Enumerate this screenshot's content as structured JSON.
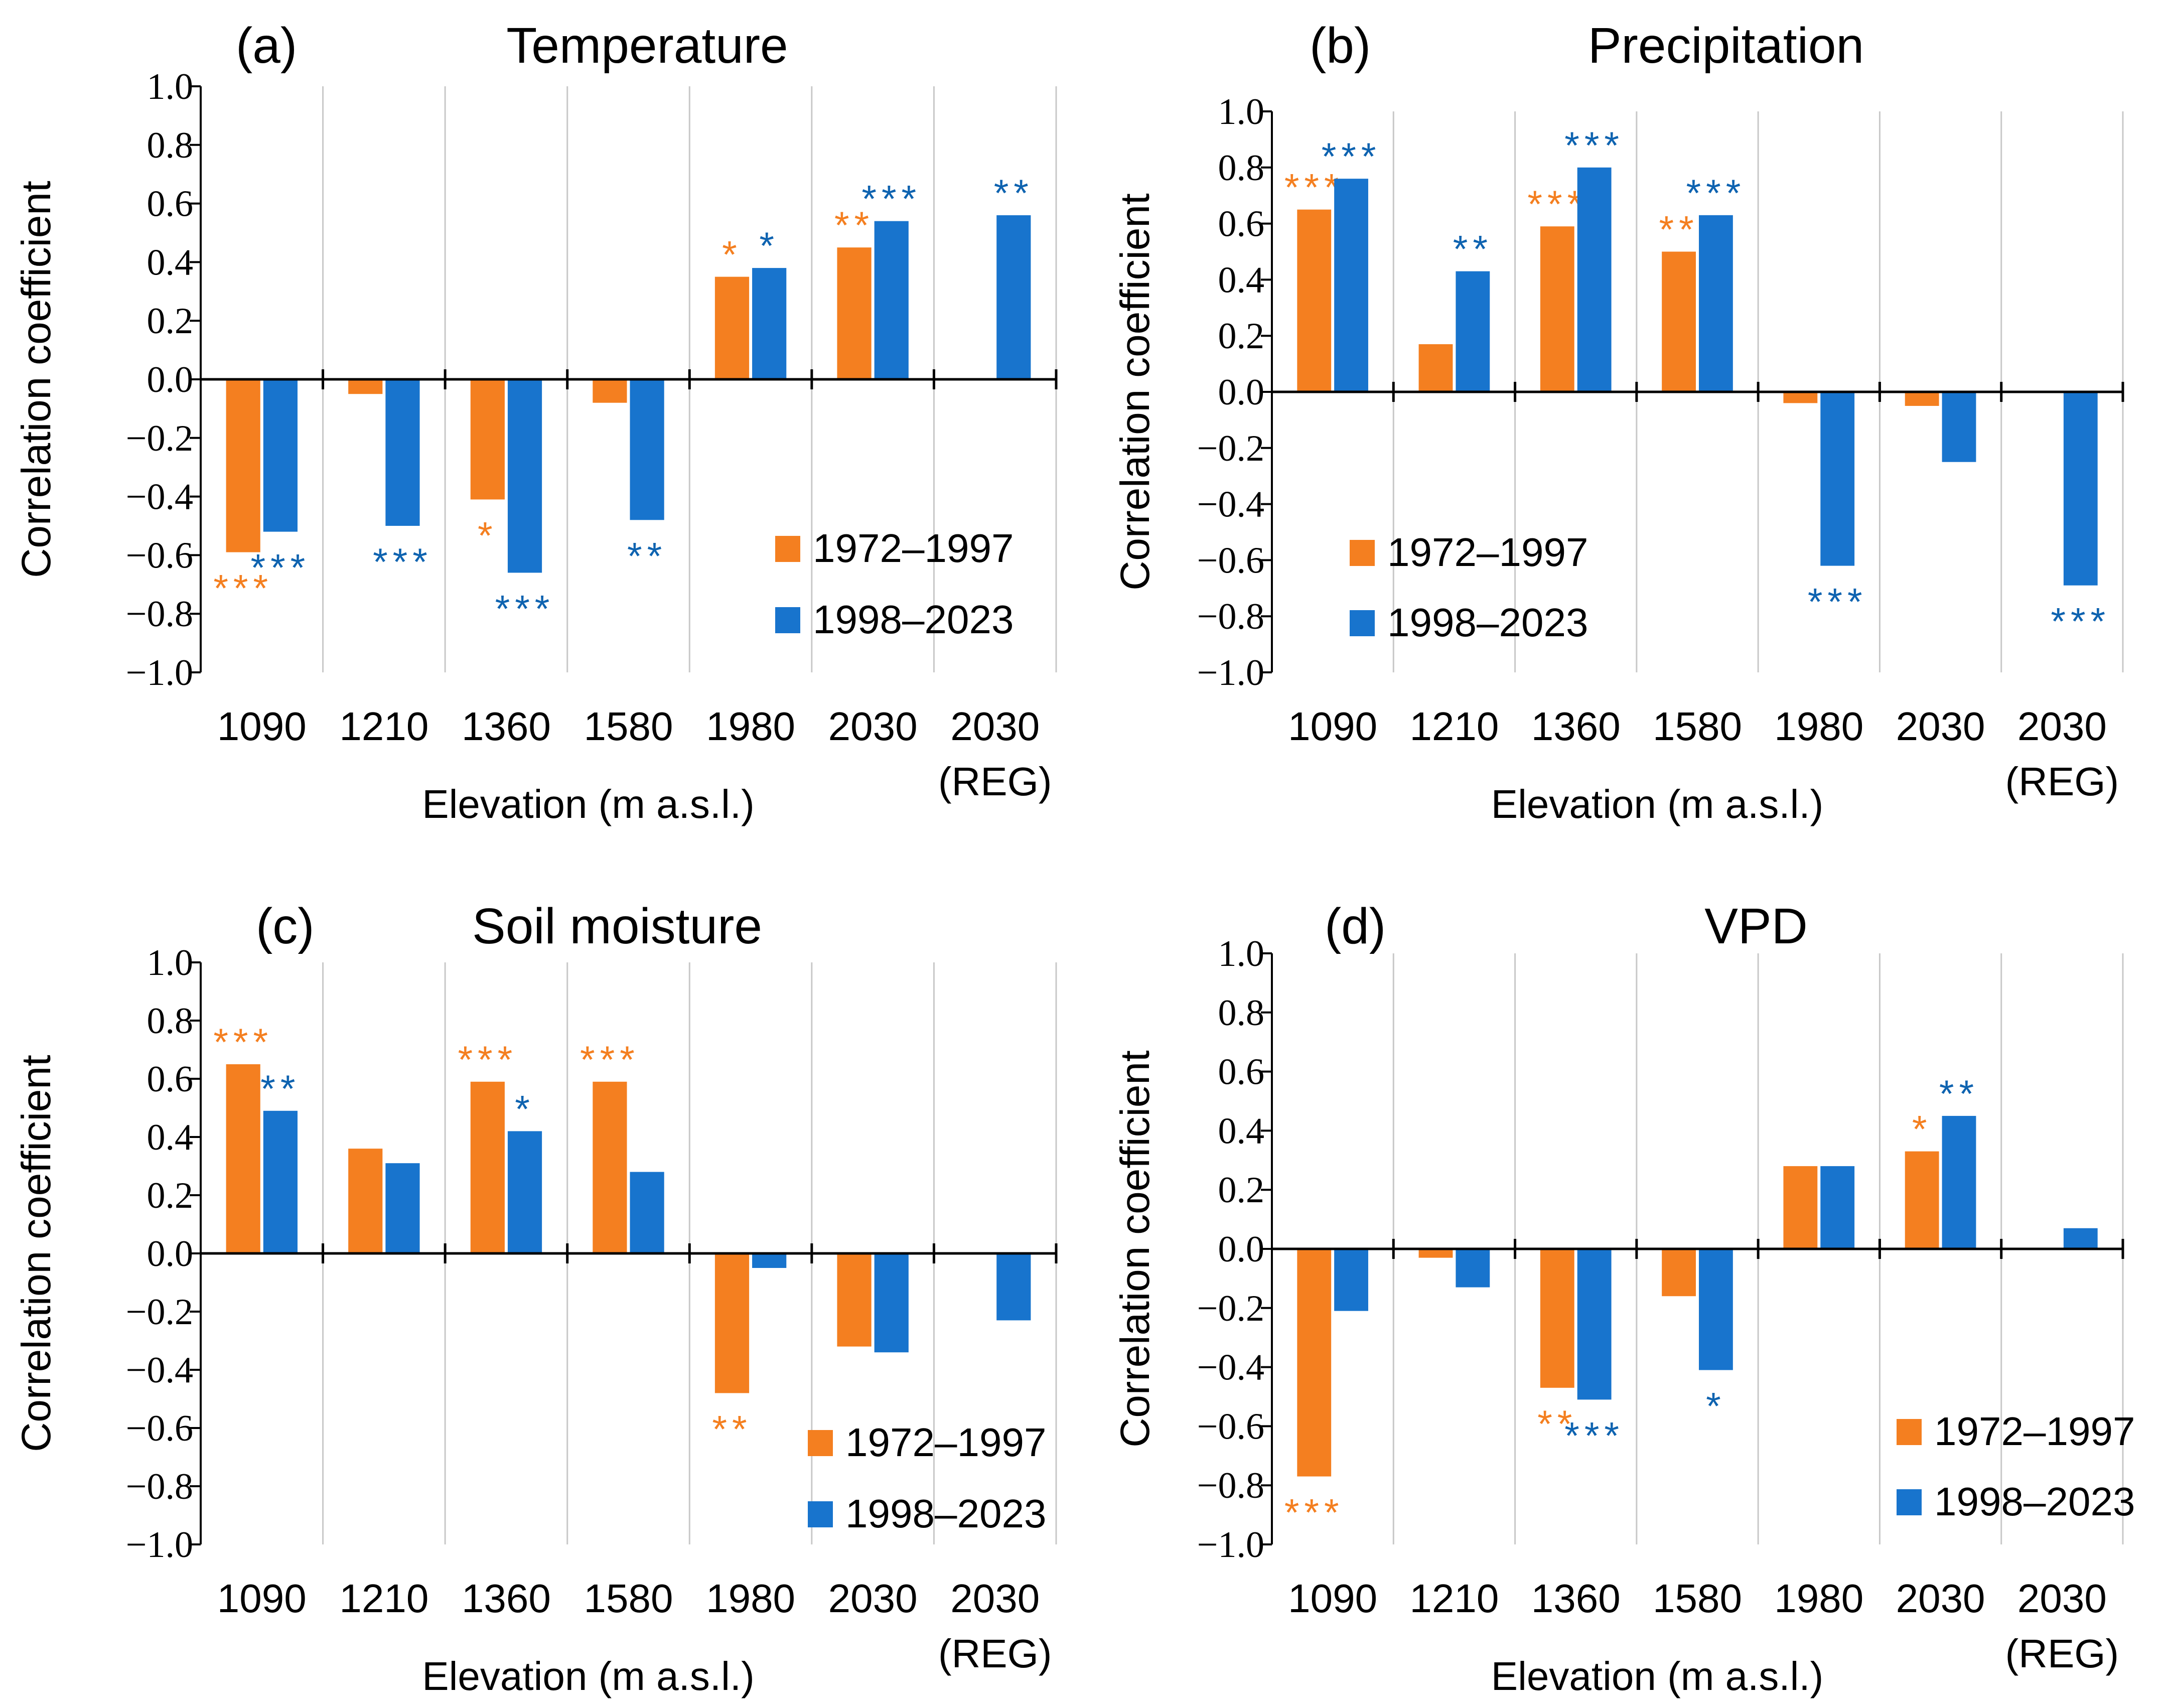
{
  "figure": {
    "legend": {
      "series1": "1972–1997",
      "series2": "1998–2023"
    },
    "colors": {
      "series1": "#F47F20",
      "series2": "#1874CD",
      "series1_star": "#F47F20",
      "series2_star": "#0E63B0"
    }
  },
  "chart_data": [
    {
      "type": "bar",
      "panel_label": "(a)",
      "title": "Temperature",
      "xlabel": "Elevation (m a.s.l.)",
      "ylabel": "Correlation coefficient",
      "ylim": [
        -1.0,
        1.0
      ],
      "yticks": [
        "1.0",
        "0.8",
        "0.6",
        "0.4",
        "0.2",
        "0.0",
        "−0.2",
        "−0.4",
        "−0.6",
        "−0.8",
        "−1.0"
      ],
      "categories": [
        [
          "1090"
        ],
        [
          "1210"
        ],
        [
          "1360"
        ],
        [
          "1580"
        ],
        [
          "1980"
        ],
        [
          "2030"
        ],
        [
          "2030",
          "(REG)"
        ]
      ],
      "legend_position": "bottom-right",
      "series": [
        {
          "name": "1972–1997",
          "values": [
            -0.59,
            -0.05,
            -0.41,
            -0.08,
            0.35,
            0.45,
            null
          ],
          "significance": [
            "***",
            "",
            "*",
            "",
            "*",
            "**",
            ""
          ]
        },
        {
          "name": "1998–2023",
          "values": [
            -0.52,
            -0.5,
            -0.66,
            -0.48,
            0.38,
            0.54,
            0.56
          ],
          "significance": [
            "***",
            "***",
            "***",
            "**",
            "*",
            "***",
            "**"
          ]
        }
      ]
    },
    {
      "type": "bar",
      "panel_label": "(b)",
      "title": "Precipitation",
      "xlabel": "Elevation (m a.s.l.)",
      "ylabel": "Correlation coefficient",
      "ylim": [
        -1.0,
        1.0
      ],
      "yticks": [
        "1.0",
        "0.8",
        "0.6",
        "0.4",
        "0.2",
        "0.0",
        "−0.2",
        "−0.4",
        "−0.6",
        "−0.8",
        "−1.0"
      ],
      "categories": [
        [
          "1090"
        ],
        [
          "1210"
        ],
        [
          "1360"
        ],
        [
          "1580"
        ],
        [
          "1980"
        ],
        [
          "2030"
        ],
        [
          "2030",
          "(REG)"
        ]
      ],
      "legend_position": "bottom-left",
      "series": [
        {
          "name": "1972–1997",
          "values": [
            0.65,
            0.17,
            0.59,
            0.5,
            -0.04,
            -0.05,
            null
          ],
          "significance": [
            "***",
            "",
            "***",
            "**",
            "",
            "",
            ""
          ]
        },
        {
          "name": "1998–2023",
          "values": [
            0.76,
            0.43,
            0.8,
            0.63,
            -0.62,
            -0.25,
            -0.69
          ],
          "significance": [
            "***",
            "**",
            "***",
            "***",
            "***",
            "",
            "***"
          ]
        }
      ]
    },
    {
      "type": "bar",
      "panel_label": "(c)",
      "title": "Soil moisture",
      "xlabel": "Elevation (m a.s.l.)",
      "ylabel": "Correlation coefficient",
      "ylim": [
        -1.0,
        1.0
      ],
      "yticks": [
        "1.0",
        "0.8",
        "0.6",
        "0.4",
        "0.2",
        "0.0",
        "−0.2",
        "−0.4",
        "−0.6",
        "−0.8",
        "−1.0"
      ],
      "categories": [
        [
          "1090"
        ],
        [
          "1210"
        ],
        [
          "1360"
        ],
        [
          "1580"
        ],
        [
          "1980"
        ],
        [
          "2030"
        ],
        [
          "2030",
          "(REG)"
        ]
      ],
      "legend_position": "bottom-right",
      "series": [
        {
          "name": "1972–1997",
          "values": [
            0.65,
            0.36,
            0.59,
            0.59,
            -0.48,
            -0.32,
            null
          ],
          "significance": [
            "***",
            "",
            "***",
            "***",
            "**",
            "",
            ""
          ]
        },
        {
          "name": "1998–2023",
          "values": [
            0.49,
            0.31,
            0.42,
            0.28,
            -0.05,
            -0.34,
            -0.23
          ],
          "significance": [
            "**",
            "",
            "*",
            "",
            "",
            "",
            ""
          ]
        }
      ]
    },
    {
      "type": "bar",
      "panel_label": "(d)",
      "title": "VPD",
      "xlabel": "Elevation (m a.s.l.)",
      "ylabel": "Correlation coefficient",
      "ylim": [
        -1.0,
        1.0
      ],
      "yticks": [
        "1.0",
        "0.8",
        "0.6",
        "0.4",
        "0.2",
        "0.0",
        "−0.2",
        "−0.4",
        "−0.6",
        "−0.8",
        "−1.0"
      ],
      "categories": [
        [
          "1090"
        ],
        [
          "1210"
        ],
        [
          "1360"
        ],
        [
          "1580"
        ],
        [
          "1980"
        ],
        [
          "2030"
        ],
        [
          "2030",
          "(REG)"
        ]
      ],
      "legend_position": "bottom-right",
      "series": [
        {
          "name": "1972–1997",
          "values": [
            -0.77,
            -0.03,
            -0.47,
            -0.16,
            0.28,
            0.33,
            null
          ],
          "significance": [
            "***",
            "",
            "**",
            "",
            "",
            "*",
            ""
          ]
        },
        {
          "name": "1998–2023",
          "values": [
            -0.21,
            -0.13,
            -0.51,
            -0.41,
            0.28,
            0.45,
            0.07
          ],
          "significance": [
            "",
            "",
            "***",
            "*",
            "",
            "**",
            ""
          ]
        }
      ]
    }
  ]
}
